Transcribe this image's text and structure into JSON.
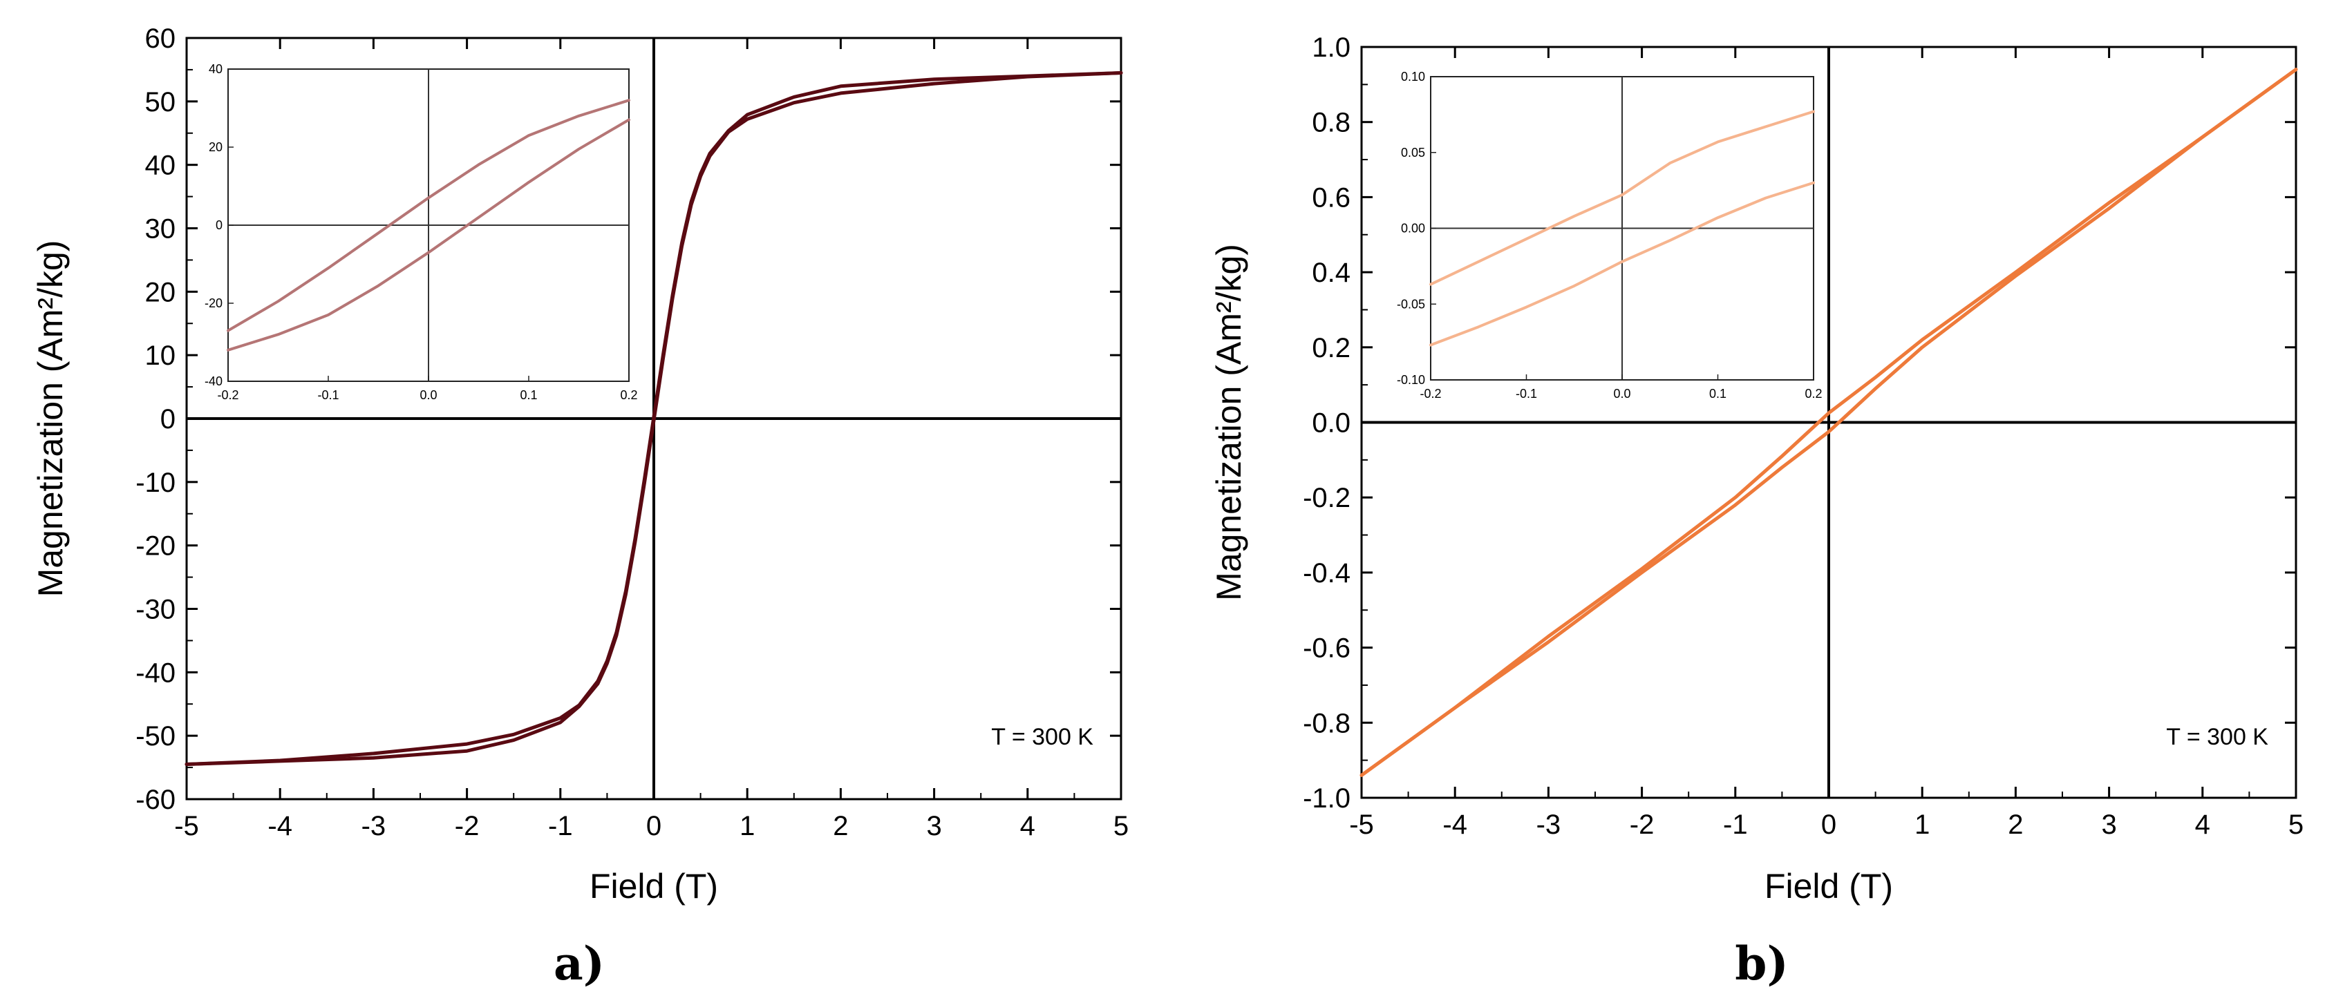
{
  "figure": {
    "panel_labels": [
      "a)",
      "b)"
    ]
  },
  "chart_data": [
    {
      "type": "line",
      "panel": "a)",
      "xlabel": "Field (T)",
      "ylabel": "Magnetization (Am²/kg)",
      "xlim": [
        -5,
        5
      ],
      "ylim": [
        -60,
        60
      ],
      "xticks": [
        -5,
        -4,
        -3,
        -2,
        -1,
        0,
        1,
        2,
        3,
        4,
        5
      ],
      "yticks": [
        60,
        50,
        40,
        30,
        20,
        10,
        0,
        -10,
        -20,
        -30,
        -40,
        -50,
        -60
      ],
      "annotation": "T = 300 K",
      "color": "#5a0a12",
      "grid": false,
      "series": [
        {
          "x": [
            -5,
            -4,
            -3,
            -2,
            -1.5,
            -1,
            -0.8,
            -0.6,
            -0.5,
            -0.4,
            -0.3,
            -0.2,
            -0.1,
            0,
            0.1,
            0.2,
            0.3,
            0.4,
            0.5,
            0.6,
            0.8,
            1,
            1.5,
            2,
            3,
            4,
            5
          ],
          "y": [
            -54.5,
            -53.9,
            -52.8,
            -51.3,
            -49.8,
            -47.2,
            -45.2,
            -41.4,
            -38.2,
            -33.7,
            -27.2,
            -18.9,
            -9.5,
            0.3,
            10.1,
            19.4,
            27.7,
            34.2,
            38.6,
            41.8,
            45.4,
            47.9,
            50.7,
            52.4,
            53.5,
            54.0,
            54.5
          ]
        },
        {
          "x": [
            -5,
            -4,
            -3,
            -2,
            -1.5,
            -1,
            -0.8,
            -0.6,
            -0.5,
            -0.4,
            -0.3,
            -0.2,
            -0.1,
            0,
            0.1,
            0.2,
            0.3,
            0.4,
            0.5,
            0.6,
            0.8,
            1,
            1.5,
            2,
            3,
            4,
            5
          ],
          "y": [
            -54.5,
            -54.0,
            -53.5,
            -52.4,
            -50.7,
            -47.9,
            -45.4,
            -41.8,
            -38.6,
            -34.2,
            -27.7,
            -19.4,
            -10.1,
            -0.3,
            9.5,
            18.9,
            27.2,
            33.7,
            38.2,
            41.4,
            45.2,
            47.2,
            49.8,
            51.3,
            52.8,
            53.9,
            54.5
          ]
        }
      ],
      "inset": {
        "xlim": [
          -0.2,
          0.2
        ],
        "ylim": [
          -40,
          40
        ],
        "xticks": [
          -0.2,
          -0.1,
          0.0,
          0.1,
          0.2
        ],
        "yticks": [
          40,
          20,
          0,
          -20,
          -40
        ],
        "color": "#b57575",
        "series": [
          {
            "x": [
              -0.2,
              -0.15,
              -0.1,
              -0.05,
              0,
              0.05,
              0.1,
              0.15,
              0.2
            ],
            "y": [
              -27,
              -19.5,
              -11,
              -2,
              7,
              15.5,
              23,
              28,
              32
            ]
          },
          {
            "x": [
              -0.2,
              -0.15,
              -0.1,
              -0.05,
              0,
              0.05,
              0.1,
              0.15,
              0.2
            ],
            "y": [
              -32,
              -28,
              -23,
              -15.5,
              -7,
              2,
              11,
              19.5,
              27
            ]
          }
        ]
      }
    },
    {
      "type": "line",
      "panel": "b)",
      "xlabel": "Field (T)",
      "ylabel": "Magnetization (Am²/kg)",
      "xlim": [
        -5,
        5
      ],
      "ylim": [
        -1.0,
        1.0
      ],
      "xticks": [
        -5,
        -4,
        -3,
        -2,
        -1,
        0,
        1,
        2,
        3,
        4,
        5
      ],
      "yticks": [
        "1.0",
        "0.8",
        "0.6",
        "0.4",
        "0.2",
        "0.0",
        "-0.2",
        "-0.4",
        "-0.6",
        "-0.8",
        "-1.0"
      ],
      "annotation": "T = 300 K",
      "color": "#ee7a3a",
      "grid": false,
      "series": [
        {
          "x": [
            -5,
            -4,
            -3,
            -2,
            -1,
            -0.5,
            0,
            0.5,
            1,
            2,
            3,
            4,
            5
          ],
          "y": [
            -0.94,
            -0.76,
            -0.57,
            -0.39,
            -0.2,
            -0.09,
            0.025,
            0.12,
            0.22,
            0.4,
            0.585,
            0.76,
            0.94
          ]
        },
        {
          "x": [
            -5,
            -4,
            -3,
            -2,
            -1,
            -0.5,
            0,
            0.5,
            1,
            2,
            3,
            4,
            5
          ],
          "y": [
            -0.94,
            -0.76,
            -0.585,
            -0.4,
            -0.22,
            -0.12,
            -0.025,
            0.09,
            0.2,
            0.39,
            0.57,
            0.76,
            0.94
          ]
        }
      ],
      "inset": {
        "xlim": [
          -0.2,
          0.2
        ],
        "ylim": [
          -0.1,
          0.1
        ],
        "xticks": [
          -0.2,
          -0.1,
          0.0,
          0.1,
          0.2
        ],
        "yticks": [
          "0.10",
          "0.05",
          "0.00",
          "-0.05",
          "-0.10"
        ],
        "color": "#f6b48e",
        "series": [
          {
            "x": [
              -0.2,
              -0.15,
              -0.1,
              -0.05,
              0,
              0.05,
              0.1,
              0.15,
              0.2
            ],
            "y": [
              -0.037,
              -0.022,
              -0.007,
              0.008,
              0.022,
              0.043,
              0.057,
              0.067,
              0.077
            ]
          },
          {
            "x": [
              -0.2,
              -0.15,
              -0.1,
              -0.05,
              0,
              0.05,
              0.1,
              0.15,
              0.2
            ],
            "y": [
              -0.077,
              -0.065,
              -0.052,
              -0.038,
              -0.022,
              -0.008,
              0.007,
              0.02,
              0.03
            ]
          }
        ]
      }
    }
  ]
}
